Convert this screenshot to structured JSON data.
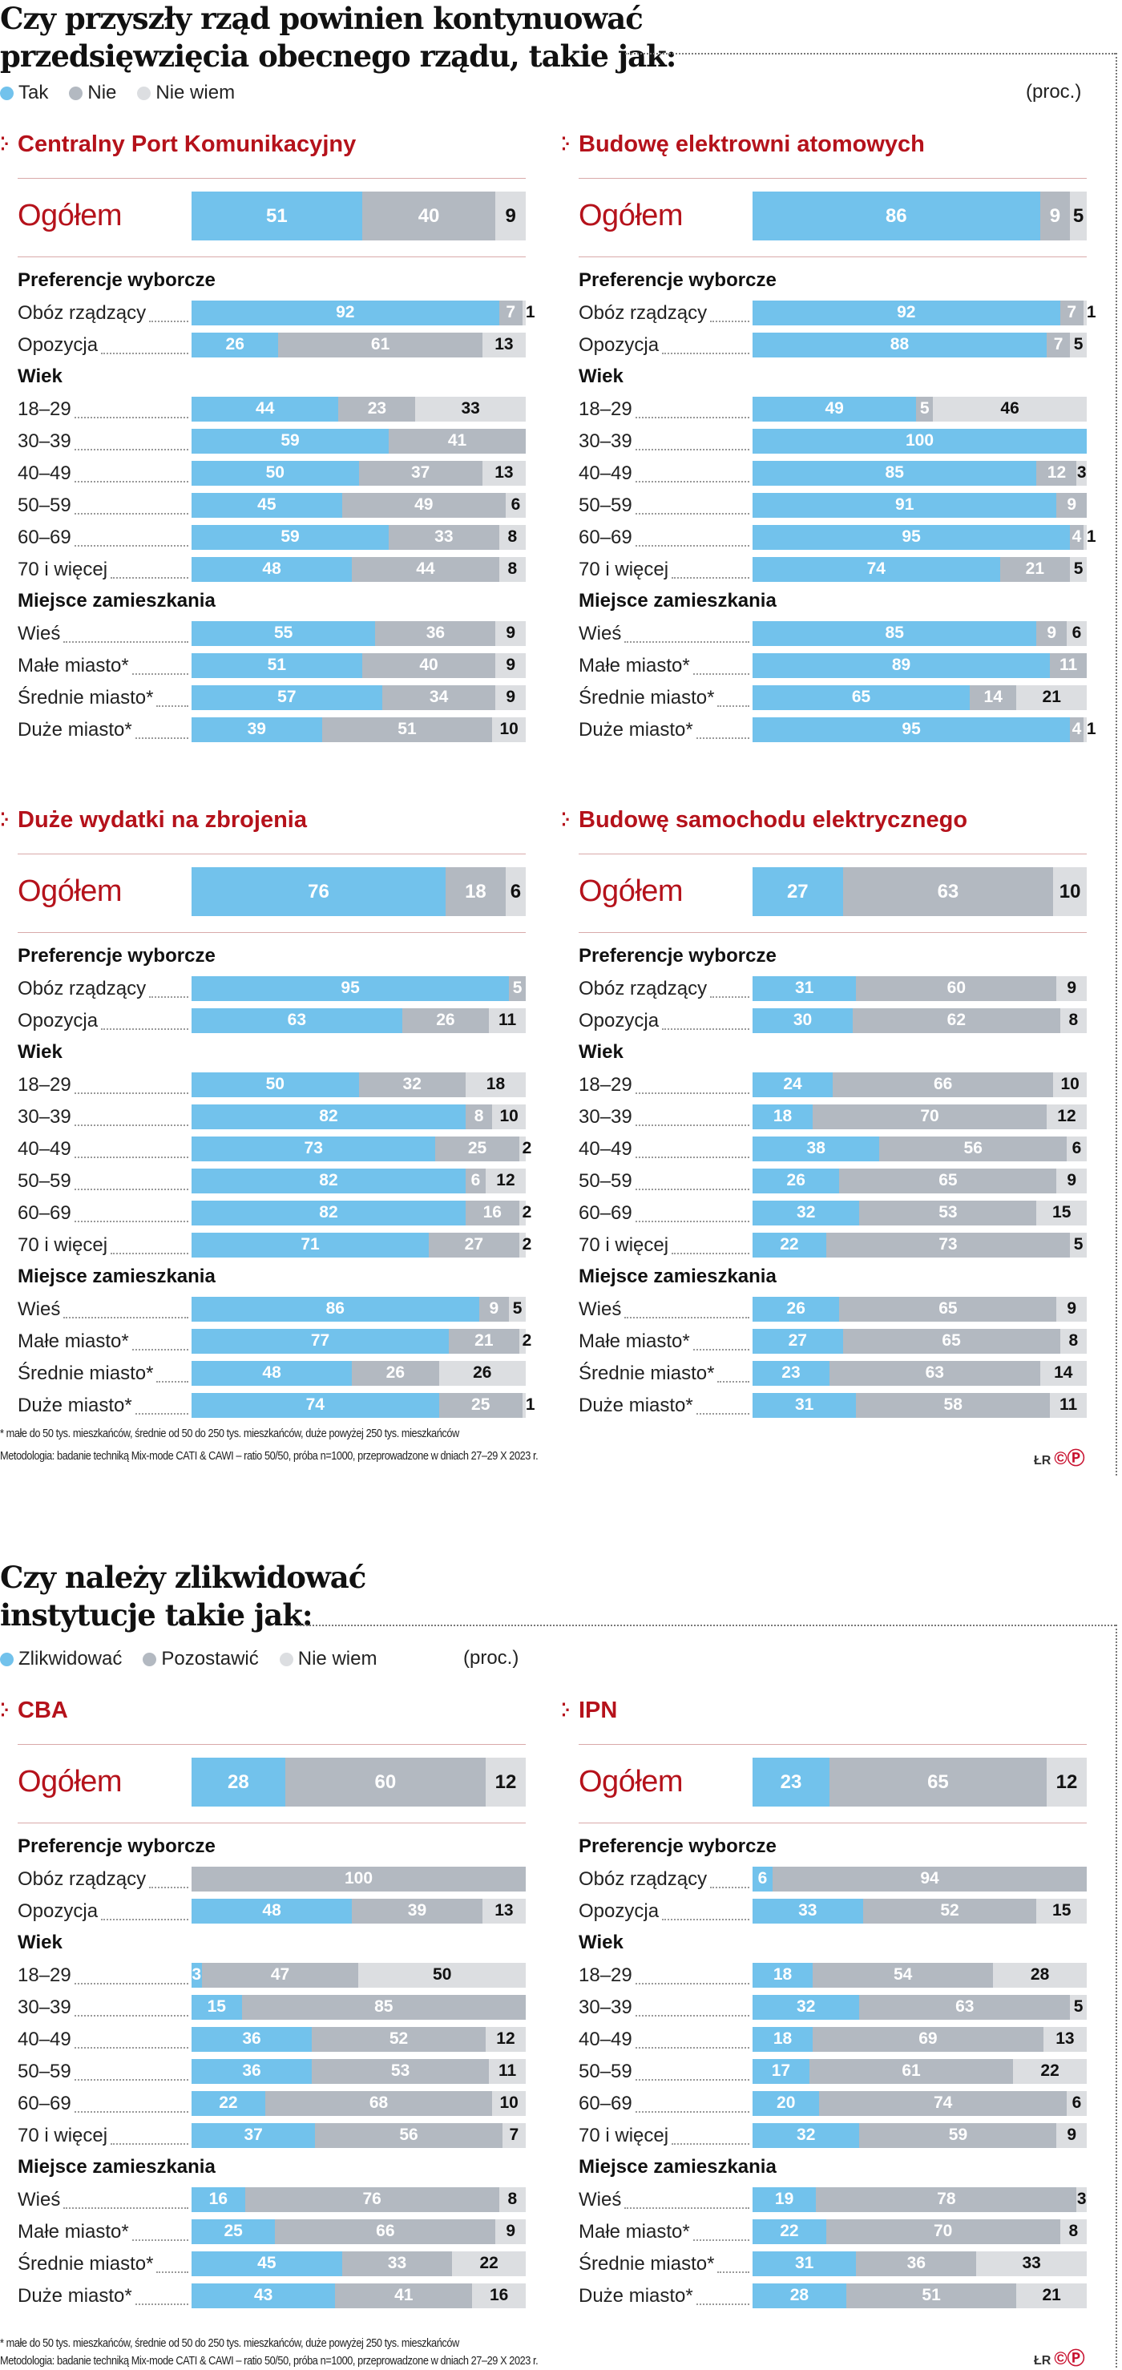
{
  "colors": {
    "tak": "#72c2ec",
    "nie": "#b3b9c1",
    "niewiem": "#dcdee1",
    "accent": "#b5121b"
  },
  "graphic1": {
    "title_line1": "Czy przyszły rząd powinien kontynuować",
    "title_line2": "przedsięwzięcia obecnego rządu, takie jak:",
    "legend": [
      "Tak",
      "Nie",
      "Nie wiem"
    ],
    "unit": "(proc.)",
    "footnote": "* małe do 50 tys. mieszkańców, średnie od 50 do 250 tys. mieszkańców, duże powyżej 250 tys. mieszkańców",
    "method": "Metodologia: badanie techniką Mix-mode CATI & CAWI – ratio 50/50, próba n=1000, przeprowadzone w dniach 27–29 X 2023 r.",
    "logo": "ŁR ©P"
  },
  "graphic2": {
    "title_line1": "Czy należy zlikwidować",
    "title_line2": "instytucje takie jak:",
    "legend": [
      "Zlikwidować",
      "Pozostawić",
      "Nie wiem"
    ],
    "unit": "(proc.)",
    "footnote": "* małe do 50 tys. mieszkańców, średnie od 50 do 250 tys. mieszkańców, duże powyżej 250 tys. mieszkańców",
    "method": "Metodologia: badanie techniką Mix-mode CATI & CAWI – ratio 50/50, próba n=1000, przeprowadzone w dniach 27–29 X 2023 r.",
    "logo": "ŁR ©P"
  },
  "row_labels": {
    "ogolem": "Ogółem",
    "groups": [
      {
        "header": "Preferencje wyborcze",
        "rows": [
          "Obóz rządzący",
          "Opozycja"
        ]
      },
      {
        "header": "Wiek",
        "rows": [
          "18–29",
          "30–39",
          "40–49",
          "50–59",
          "60–69",
          "70 i więcej"
        ]
      },
      {
        "header": "Miejsce zamieszkania",
        "rows": [
          "Wieś",
          "Małe miasto*",
          "Średnie miasto*",
          "Duże miasto*"
        ]
      }
    ]
  },
  "chart_data": [
    {
      "type": "bar",
      "stacked": true,
      "orientation": "horizontal",
      "graphic": 1,
      "title": "Centralny Port Komunikacyjny",
      "series_names": [
        "Tak",
        "Nie",
        "Nie wiem"
      ],
      "ogolem": [
        51,
        40,
        9
      ],
      "values": [
        [
          92,
          7,
          1
        ],
        [
          26,
          61,
          13
        ],
        [
          44,
          23,
          33
        ],
        [
          59,
          41,
          0
        ],
        [
          50,
          37,
          13
        ],
        [
          45,
          49,
          6
        ],
        [
          59,
          33,
          8
        ],
        [
          48,
          44,
          8
        ],
        [
          55,
          36,
          9
        ],
        [
          51,
          40,
          9
        ],
        [
          57,
          34,
          9
        ],
        [
          39,
          51,
          10
        ]
      ]
    },
    {
      "type": "bar",
      "stacked": true,
      "orientation": "horizontal",
      "graphic": 1,
      "title": "Budowę elektrowni atomowych",
      "series_names": [
        "Tak",
        "Nie",
        "Nie wiem"
      ],
      "ogolem": [
        86,
        9,
        5
      ],
      "values": [
        [
          92,
          7,
          1
        ],
        [
          88,
          7,
          5
        ],
        [
          49,
          5,
          46
        ],
        [
          100,
          0,
          0
        ],
        [
          85,
          12,
          3
        ],
        [
          91,
          9,
          0
        ],
        [
          95,
          4,
          1
        ],
        [
          74,
          21,
          5
        ],
        [
          85,
          9,
          6
        ],
        [
          89,
          11,
          0
        ],
        [
          65,
          14,
          21
        ],
        [
          95,
          4,
          1
        ]
      ]
    },
    {
      "type": "bar",
      "stacked": true,
      "orientation": "horizontal",
      "graphic": 1,
      "title": "Duże wydatki na zbrojenia",
      "series_names": [
        "Tak",
        "Nie",
        "Nie wiem"
      ],
      "ogolem": [
        76,
        18,
        6
      ],
      "values": [
        [
          95,
          5,
          0
        ],
        [
          63,
          26,
          11
        ],
        [
          50,
          32,
          18
        ],
        [
          82,
          8,
          10
        ],
        [
          73,
          25,
          2
        ],
        [
          82,
          6,
          12
        ],
        [
          82,
          16,
          2
        ],
        [
          71,
          27,
          2
        ],
        [
          86,
          9,
          5
        ],
        [
          77,
          21,
          2
        ],
        [
          48,
          26,
          26
        ],
        [
          74,
          25,
          1
        ]
      ]
    },
    {
      "type": "bar",
      "stacked": true,
      "orientation": "horizontal",
      "graphic": 1,
      "title": "Budowę samochodu elektrycznego",
      "series_names": [
        "Tak",
        "Nie",
        "Nie wiem"
      ],
      "ogolem": [
        27,
        63,
        10
      ],
      "values": [
        [
          31,
          60,
          9
        ],
        [
          30,
          62,
          8
        ],
        [
          24,
          66,
          10
        ],
        [
          18,
          70,
          12
        ],
        [
          38,
          56,
          6
        ],
        [
          26,
          65,
          9
        ],
        [
          32,
          53,
          15
        ],
        [
          22,
          73,
          5
        ],
        [
          26,
          65,
          9
        ],
        [
          27,
          65,
          8
        ],
        [
          23,
          63,
          14
        ],
        [
          31,
          58,
          11
        ]
      ]
    },
    {
      "type": "bar",
      "stacked": true,
      "orientation": "horizontal",
      "graphic": 2,
      "title": "CBA",
      "series_names": [
        "Zlikwidować",
        "Pozostawić",
        "Nie wiem"
      ],
      "ogolem": [
        28,
        60,
        12
      ],
      "values": [
        [
          0,
          100,
          0
        ],
        [
          48,
          39,
          13
        ],
        [
          3,
          47,
          50
        ],
        [
          15,
          85,
          0
        ],
        [
          36,
          52,
          12
        ],
        [
          36,
          53,
          11
        ],
        [
          22,
          68,
          10
        ],
        [
          37,
          56,
          7
        ],
        [
          16,
          76,
          8
        ],
        [
          25,
          66,
          9
        ],
        [
          45,
          33,
          22
        ],
        [
          43,
          41,
          16
        ]
      ]
    },
    {
      "type": "bar",
      "stacked": true,
      "orientation": "horizontal",
      "graphic": 2,
      "title": "IPN",
      "series_names": [
        "Zlikwidować",
        "Pozostawić",
        "Nie wiem"
      ],
      "ogolem": [
        23,
        65,
        12
      ],
      "values": [
        [
          6,
          94,
          0
        ],
        [
          33,
          52,
          15
        ],
        [
          18,
          54,
          28
        ],
        [
          32,
          63,
          5
        ],
        [
          18,
          69,
          13
        ],
        [
          17,
          61,
          22
        ],
        [
          20,
          74,
          6
        ],
        [
          32,
          59,
          9
        ],
        [
          19,
          78,
          3
        ],
        [
          22,
          70,
          8
        ],
        [
          31,
          36,
          33
        ],
        [
          28,
          51,
          21
        ]
      ]
    }
  ]
}
